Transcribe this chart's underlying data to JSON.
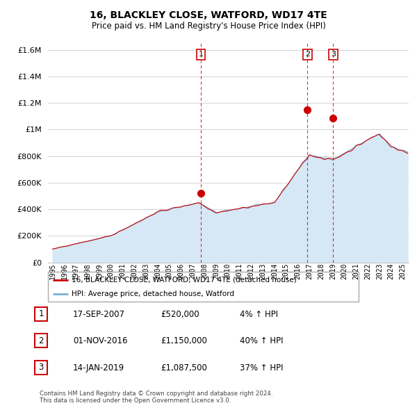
{
  "title": "16, BLACKLEY CLOSE, WATFORD, WD17 4TE",
  "subtitle": "Price paid vs. HM Land Registry's House Price Index (HPI)",
  "ytick_values": [
    0,
    200000,
    400000,
    600000,
    800000,
    1000000,
    1200000,
    1400000,
    1600000
  ],
  "ylim": [
    0,
    1650000
  ],
  "xlim_start": 1994.6,
  "xlim_end": 2025.5,
  "sale_color": "#cc0000",
  "hpi_color": "#7bafd4",
  "hpi_fill_color": "#d6e8f5",
  "vline_color": "#cc0000",
  "transactions": [
    {
      "year": 2007.71,
      "price": 520000,
      "label": "1"
    },
    {
      "year": 2016.83,
      "price": 1150000,
      "label": "2"
    },
    {
      "year": 2019.04,
      "price": 1087500,
      "label": "3"
    }
  ],
  "legend_sale_label": "16, BLACKLEY CLOSE, WATFORD, WD17 4TE (detached house)",
  "legend_hpi_label": "HPI: Average price, detached house, Watford",
  "table_rows": [
    {
      "num": "1",
      "date": "17-SEP-2007",
      "price": "£520,000",
      "pct": "4% ↑ HPI"
    },
    {
      "num": "2",
      "date": "01-NOV-2016",
      "price": "£1,150,000",
      "pct": "40% ↑ HPI"
    },
    {
      "num": "3",
      "date": "14-JAN-2019",
      "price": "£1,087,500",
      "pct": "37% ↑ HPI"
    }
  ],
  "footer": "Contains HM Land Registry data © Crown copyright and database right 2024.\nThis data is licensed under the Open Government Licence v3.0.",
  "background_color": "#ffffff",
  "grid_color": "#cccccc"
}
